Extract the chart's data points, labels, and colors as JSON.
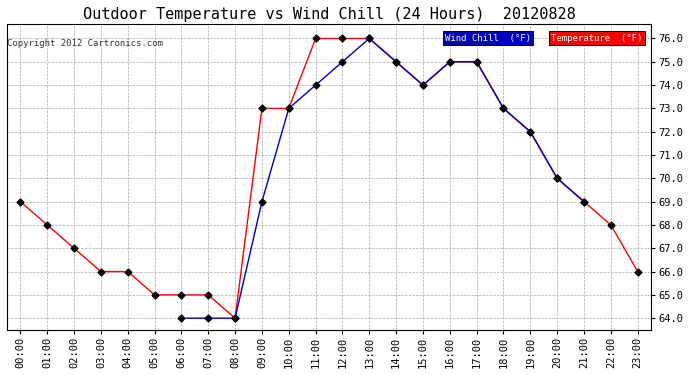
{
  "title": "Outdoor Temperature vs Wind Chill (24 Hours)  20120828",
  "copyright": "Copyright 2012 Cartronics.com",
  "ylim": [
    63.5,
    76.6
  ],
  "yticks": [
    64.0,
    65.0,
    66.0,
    67.0,
    68.0,
    69.0,
    70.0,
    71.0,
    72.0,
    73.0,
    74.0,
    75.0,
    76.0
  ],
  "hours": [
    "00:00",
    "01:00",
    "02:00",
    "03:00",
    "04:00",
    "05:00",
    "06:00",
    "07:00",
    "08:00",
    "09:00",
    "10:00",
    "11:00",
    "12:00",
    "13:00",
    "14:00",
    "15:00",
    "16:00",
    "17:00",
    "18:00",
    "19:00",
    "20:00",
    "21:00",
    "22:00",
    "23:00"
  ],
  "temperature": [
    69.0,
    68.0,
    67.0,
    66.0,
    66.0,
    65.0,
    65.0,
    65.0,
    64.0,
    73.0,
    73.0,
    76.0,
    76.0,
    76.0,
    75.0,
    74.0,
    75.0,
    75.0,
    73.0,
    72.0,
    70.0,
    69.0,
    68.0,
    66.0
  ],
  "wind_chill": [
    null,
    null,
    null,
    null,
    null,
    null,
    64.0,
    64.0,
    64.0,
    69.0,
    73.0,
    74.0,
    75.0,
    76.0,
    75.0,
    74.0,
    75.0,
    75.0,
    73.0,
    72.0,
    70.0,
    69.0,
    null,
    null
  ],
  "temp_color": "#ff0000",
  "wind_chill_color": "#0000bb",
  "background_color": "#ffffff",
  "grid_color": "#aaaaaa",
  "marker_size": 3.5,
  "marker_color": "#000000",
  "title_fontsize": 11,
  "tick_fontsize": 7.5,
  "copyright_fontsize": 6.5,
  "legend_wind_chill_label": "Wind Chill  (°F)",
  "legend_temp_label": "Temperature  (°F)"
}
